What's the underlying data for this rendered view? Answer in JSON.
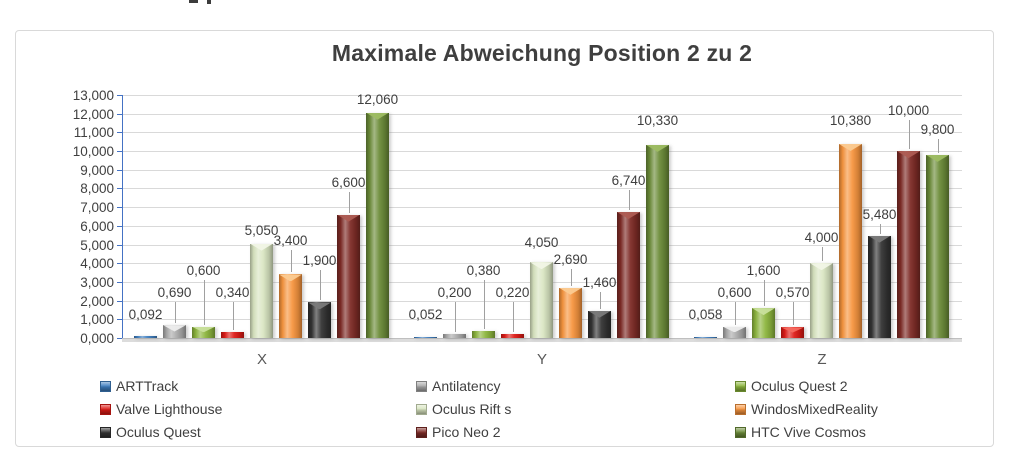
{
  "chart_data": {
    "type": "bar",
    "title": "Maximale Abweichung Position 2 zu 2",
    "categories": [
      "X",
      "Y",
      "Z"
    ],
    "series": [
      {
        "name": "ARTTrack",
        "color": "#3f7fc1",
        "highlight": "#9dc3e6",
        "values": [
          0.092,
          0.052,
          0.058
        ]
      },
      {
        "name": "Antilatency",
        "color": "#ababab",
        "highlight": "#ededed",
        "values": [
          0.69,
          0.2,
          0.6
        ]
      },
      {
        "name": "Oculus Quest 2",
        "color": "#8db63e",
        "highlight": "#c9e09c",
        "values": [
          0.6,
          0.38,
          1.6
        ]
      },
      {
        "name": "Valve Lighthouse",
        "color": "#de1b16",
        "highlight": "#f56a60",
        "values": [
          0.34,
          0.22,
          0.57
        ]
      },
      {
        "name": "Oculus Rift s",
        "color": "#d9e5c1",
        "highlight": "#f1f6e6",
        "values": [
          5.05,
          4.05,
          4.0
        ]
      },
      {
        "name": "WindosMixedReality",
        "color": "#f7953f",
        "highlight": "#fbcb92",
        "values": [
          3.4,
          2.69,
          10.38
        ]
      },
      {
        "name": "Oculus Quest",
        "color": "#333333",
        "highlight": "#7a7a7a",
        "values": [
          1.9,
          1.46,
          5.48
        ]
      },
      {
        "name": "Pico Neo 2",
        "color": "#7e2b26",
        "highlight": "#ad5c53",
        "values": [
          6.6,
          6.74,
          10.0
        ]
      },
      {
        "name": "HTC Vive Cosmos",
        "color": "#6c8c39",
        "highlight": "#9dbc62",
        "values": [
          12.06,
          10.33,
          9.8
        ]
      }
    ],
    "ylim": [
      0,
      13
    ],
    "ytick_step": 1,
    "ytick_labels": [
      "0,000",
      "1,000",
      "2,000",
      "3,000",
      "4,000",
      "5,000",
      "6,000",
      "7,000",
      "8,000",
      "9,000",
      "10,000",
      "11,000",
      "12,000",
      "13,000"
    ],
    "decimal_separator": ",",
    "grid": true,
    "legend_position": "bottom",
    "colors": {
      "axis": "#4472c4",
      "gridline": "#d9d9d9",
      "title_text": "#3f3f3f",
      "tick_text": "#404040",
      "data_label_text": "#3f3f3f",
      "category_text": "#595959",
      "frame_border": "#d9d9d9"
    }
  }
}
